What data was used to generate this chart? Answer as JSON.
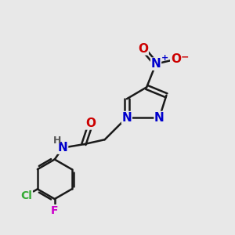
{
  "background_color": "#e8e8e8",
  "bond_color": "#1a1a1a",
  "bond_width": 1.8,
  "atom_colors": {
    "N": "#0000cc",
    "O": "#cc0000",
    "Cl": "#33aa33",
    "F": "#cc00cc",
    "H": "#555555"
  }
}
